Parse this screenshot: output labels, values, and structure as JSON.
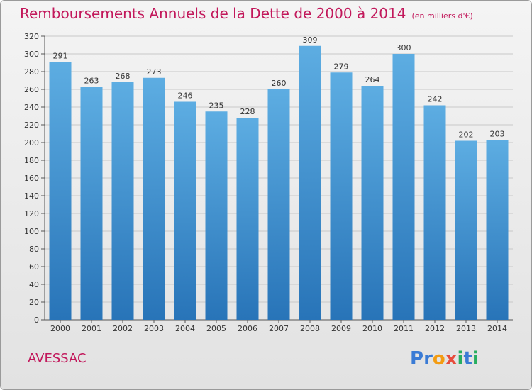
{
  "title": "Remboursements Annuels de la Dette de 2000 à 2014",
  "unit_note": "(en milliers d'€)",
  "commune": "AVESSAC",
  "logo": {
    "text": "Proxiti",
    "letters": [
      {
        "ch": "P",
        "color": "#3a7bd5"
      },
      {
        "ch": "r",
        "color": "#3a7bd5"
      },
      {
        "ch": "o",
        "color": "#f39c12"
      },
      {
        "ch": "x",
        "color": "#e74c3c"
      },
      {
        "ch": "i",
        "color": "#27ae60"
      },
      {
        "ch": "t",
        "color": "#3a7bd5"
      },
      {
        "ch": "i",
        "color": "#27ae60"
      }
    ]
  },
  "colors": {
    "bar_top": "#5dade2",
    "bar_bottom": "#2874b8",
    "grid": "#c8c8c8",
    "text": "#333333",
    "title": "#c2185b"
  },
  "chart_data": {
    "type": "bar",
    "categories": [
      "2000",
      "2001",
      "2002",
      "2003",
      "2004",
      "2005",
      "2006",
      "2007",
      "2008",
      "2009",
      "2010",
      "2011",
      "2012",
      "2013",
      "2014"
    ],
    "values": [
      291,
      263,
      268,
      273,
      246,
      235,
      228,
      260,
      309,
      279,
      264,
      300,
      242,
      202,
      203
    ],
    "ylim": [
      0,
      320
    ],
    "yticks": [
      0,
      20,
      40,
      60,
      80,
      100,
      120,
      140,
      160,
      180,
      200,
      220,
      240,
      260,
      280,
      300,
      320
    ],
    "grid": true,
    "legend": "none"
  }
}
